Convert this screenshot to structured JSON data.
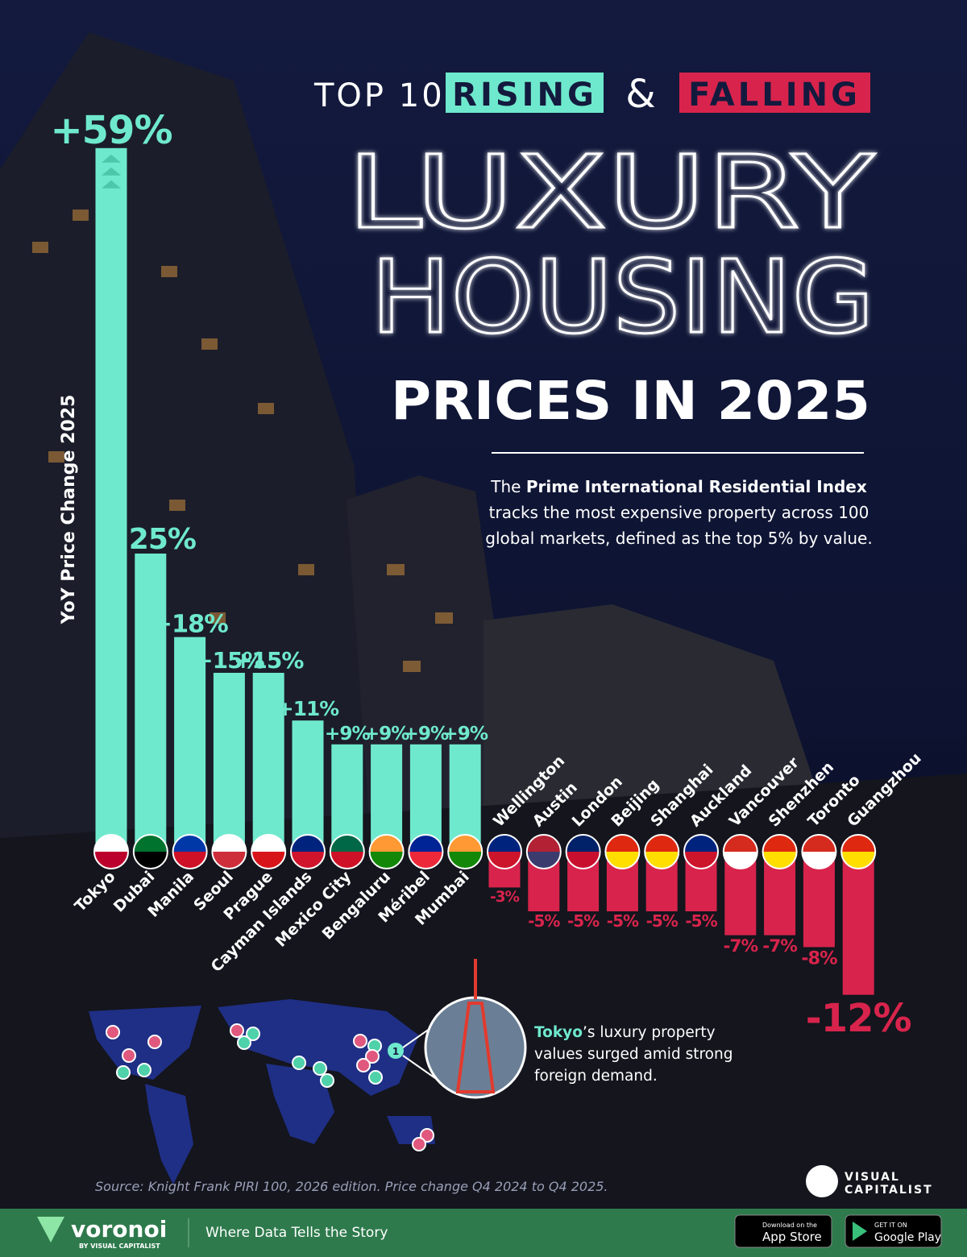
{
  "chart_data": {
    "type": "bar",
    "title_top": "TOP 10",
    "title_rising": "RISING",
    "title_and": "&",
    "title_falling": "FALLING",
    "title_line1": "LUXURY",
    "title_line2": "HOUSING",
    "title_line3": "PRICES IN 2025",
    "description_start": "The",
    "description_bold": "Prime International Residential Index",
    "description_end": "tracks the most expensive property across 100 global markets, defined as the top 5% by value.",
    "y_axis_label": "YoY Price Change 2025",
    "categories": [
      "Tokyo",
      "Dubai",
      "Manila",
      "Seoul",
      "Prague",
      "Cayman Islands",
      "Mexico City",
      "Bengaluru",
      "Méribel",
      "Mumbai",
      "Wellington",
      "Austin",
      "London",
      "Beijing",
      "Shanghai",
      "Auckland",
      "Vancouver",
      "Shenzhen",
      "Toronto",
      "Guangzhou"
    ],
    "values": [
      59,
      25,
      18,
      15,
      15,
      11,
      9,
      9,
      9,
      9,
      -3,
      -5,
      -5,
      -5,
      -5,
      -5,
      -7,
      -7,
      -8,
      -12
    ],
    "value_labels": [
      "+59%",
      "+25%",
      "+18%",
      "+15%",
      "+15%",
      "+11%",
      "+9%",
      "+9%",
      "+9%",
      "+9%",
      "-3%",
      "-5%",
      "-5%",
      "-5%",
      "-5%",
      "-5%",
      "-7%",
      "-7%",
      "-8%",
      "-12%"
    ],
    "color_positive": "#6fe9cd",
    "color_negative": "#d8244c",
    "annotation_marker": "1",
    "annotation_bold": "Tokyo",
    "annotation_rest": "’s luxury property values surged amid strong foreign demand.",
    "source": "Source: Knight Frank PIRI 100, 2026 edition. Price change Q4 2024 to Q4 2025.",
    "brand_top": "VISUAL",
    "brand_bottom": "CAPITALIST",
    "footer_brand": "voronoi",
    "footer_brand_sub": "BY VISUAL CAPITALIST",
    "footer_tagline": "Where Data Tells the Story",
    "appstore_small": "Download on the",
    "appstore_big": "App Store",
    "googleplay_small": "GET IT ON",
    "googleplay_big": "Google Play"
  }
}
